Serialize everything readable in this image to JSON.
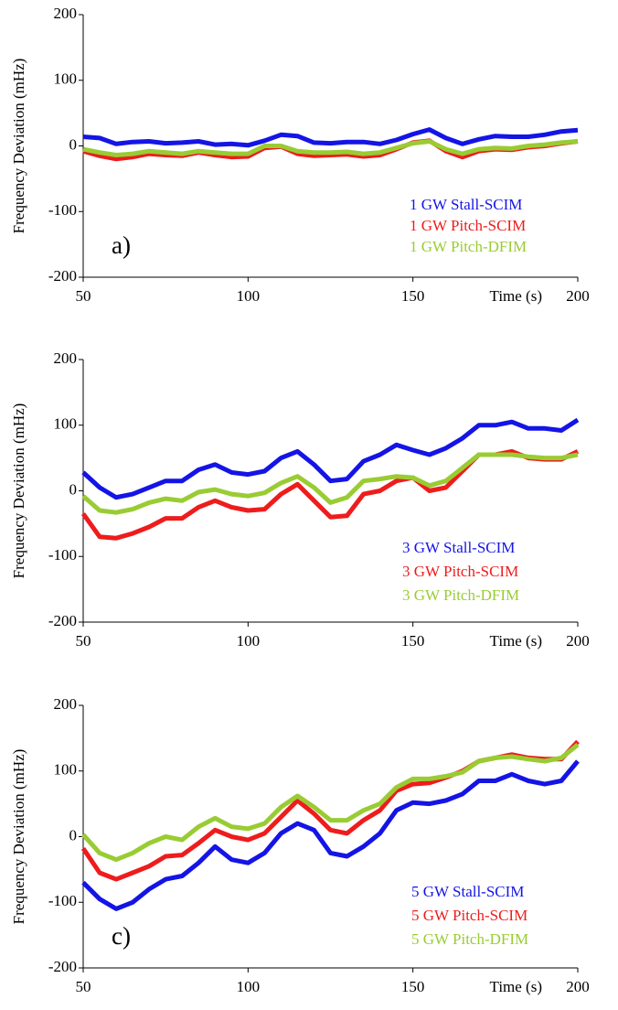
{
  "chart_data": [
    {
      "type": "line",
      "panel_label": "a)",
      "y_label": "Frequency Deviation  (mHz)",
      "x_label": "Time (s)",
      "x": [
        50,
        55,
        60,
        65,
        70,
        75,
        80,
        85,
        90,
        95,
        100,
        105,
        110,
        115,
        120,
        125,
        130,
        135,
        140,
        145,
        150,
        155,
        160,
        165,
        170,
        175,
        180,
        185,
        190,
        195,
        200
      ],
      "xlim": [
        50,
        200
      ],
      "xticks": [
        50,
        100,
        150,
        200
      ],
      "ylim": [
        -200,
        200
      ],
      "yticks": [
        -200,
        -100,
        0,
        100,
        200
      ],
      "series": [
        {
          "name": "1 GW  Stall-SCIM",
          "color": "#1414e6",
          "values": [
            14,
            12,
            3,
            6,
            7,
            4,
            5,
            7,
            2,
            3,
            1,
            8,
            17,
            15,
            5,
            4,
            6,
            6,
            3,
            9,
            18,
            25,
            12,
            3,
            10,
            15,
            14,
            14,
            17,
            22,
            24
          ]
        },
        {
          "name": "1 GW Pitch-SCIM",
          "color": "#ee1c1c",
          "values": [
            -8,
            -15,
            -20,
            -17,
            -12,
            -14,
            -15,
            -10,
            -14,
            -17,
            -16,
            -3,
            -1,
            -12,
            -15,
            -14,
            -13,
            -16,
            -14,
            -5,
            5,
            8,
            -8,
            -17,
            -8,
            -5,
            -6,
            -2,
            0,
            4,
            7
          ]
        },
        {
          "name": "1 GW Pitch-DFIM",
          "color": "#99cc33",
          "values": [
            -5,
            -10,
            -14,
            -12,
            -8,
            -10,
            -12,
            -8,
            -10,
            -12,
            -12,
            0,
            0,
            -8,
            -10,
            -10,
            -9,
            -12,
            -10,
            -3,
            4,
            7,
            -5,
            -12,
            -5,
            -3,
            -4,
            0,
            2,
            5,
            7
          ]
        }
      ]
    },
    {
      "type": "line",
      "y_label": "Frequency Deviation (mHz)",
      "x_label": "Time (s)",
      "x": [
        50,
        55,
        60,
        65,
        70,
        75,
        80,
        85,
        90,
        95,
        100,
        105,
        110,
        115,
        120,
        125,
        130,
        135,
        140,
        145,
        150,
        155,
        160,
        165,
        170,
        175,
        180,
        185,
        190,
        195,
        200
      ],
      "xlim": [
        50,
        200
      ],
      "xticks": [
        50,
        100,
        150,
        200
      ],
      "ylim": [
        -200,
        200
      ],
      "yticks": [
        -200,
        -100,
        0,
        100,
        200
      ],
      "series": [
        {
          "name": "3 GW  Stall-SCIM",
          "color": "#1414e6",
          "values": [
            28,
            5,
            -10,
            -5,
            5,
            15,
            15,
            32,
            40,
            28,
            25,
            30,
            50,
            60,
            40,
            15,
            18,
            45,
            55,
            70,
            62,
            55,
            65,
            80,
            100,
            100,
            105,
            95,
            95,
            92,
            108
          ]
        },
        {
          "name": "3 GW Pitch-SCIM",
          "color": "#ee1c1c",
          "values": [
            -35,
            -70,
            -72,
            -65,
            -55,
            -42,
            -42,
            -25,
            -15,
            -25,
            -30,
            -28,
            -5,
            10,
            -15,
            -40,
            -38,
            -5,
            0,
            15,
            20,
            0,
            5,
            30,
            55,
            55,
            60,
            50,
            48,
            48,
            60
          ]
        },
        {
          "name": "3 GW Pitch-DFIM",
          "color": "#99cc33",
          "values": [
            -8,
            -30,
            -33,
            -28,
            -18,
            -12,
            -15,
            -2,
            2,
            -5,
            -8,
            -3,
            12,
            22,
            5,
            -18,
            -10,
            15,
            18,
            22,
            20,
            8,
            15,
            35,
            55,
            55,
            55,
            52,
            50,
            50,
            55
          ]
        }
      ]
    },
    {
      "type": "line",
      "panel_label": "c)",
      "y_label": "Frequency Deviation (mHz)",
      "x_label": "Time (s)",
      "x": [
        50,
        55,
        60,
        65,
        70,
        75,
        80,
        85,
        90,
        95,
        100,
        105,
        110,
        115,
        120,
        125,
        130,
        135,
        140,
        145,
        150,
        155,
        160,
        165,
        170,
        175,
        180,
        185,
        190,
        195,
        200
      ],
      "xlim": [
        50,
        200
      ],
      "xticks": [
        50,
        100,
        150,
        200
      ],
      "ylim": [
        -200,
        200
      ],
      "yticks": [
        -200,
        -100,
        0,
        100,
        200
      ],
      "series": [
        {
          "name": "5 GW  Stall-SCIM",
          "color": "#1414e6",
          "values": [
            -70,
            -95,
            -110,
            -100,
            -80,
            -65,
            -60,
            -40,
            -15,
            -35,
            -40,
            -25,
            5,
            20,
            10,
            -25,
            -30,
            -15,
            5,
            40,
            52,
            50,
            55,
            65,
            85,
            85,
            95,
            85,
            80,
            85,
            115
          ]
        },
        {
          "name": "5 GW Pitch-SCIM",
          "color": "#ee1c1c",
          "values": [
            -18,
            -55,
            -65,
            -55,
            -45,
            -30,
            -28,
            -10,
            10,
            0,
            -5,
            5,
            30,
            55,
            35,
            10,
            5,
            25,
            40,
            70,
            80,
            82,
            90,
            100,
            115,
            120,
            125,
            120,
            118,
            118,
            145
          ]
        },
        {
          "name": "5 GW Pitch-DFIM",
          "color": "#99cc33",
          "values": [
            3,
            -25,
            -35,
            -25,
            -10,
            0,
            -5,
            15,
            28,
            15,
            12,
            20,
            45,
            62,
            45,
            25,
            25,
            40,
            50,
            75,
            88,
            88,
            92,
            98,
            115,
            120,
            122,
            118,
            115,
            120,
            140
          ]
        }
      ]
    }
  ]
}
